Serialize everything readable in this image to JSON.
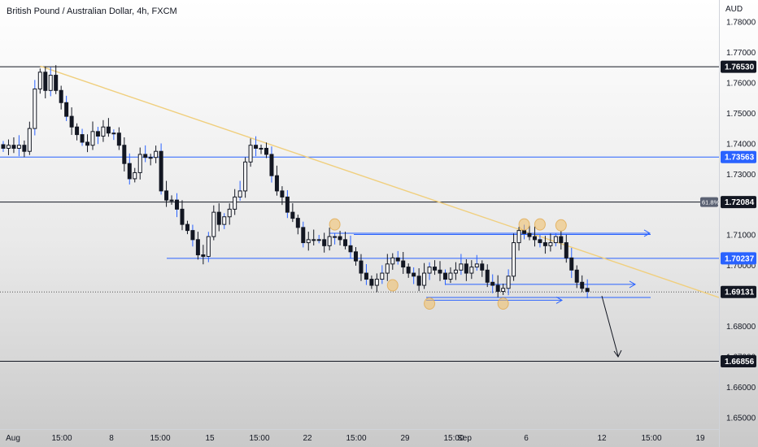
{
  "chart_data": {
    "type": "candlestick",
    "title": "British Pound / Australian Dollar, 4h, FXCM",
    "currency": "AUD",
    "ylim": [
      1.6468,
      1.7815
    ],
    "y_ticks": [
      "1.78000",
      "1.77000",
      "1.76000",
      "1.75000",
      "1.74000",
      "1.73000",
      "1.71000",
      "1.70000",
      "1.68000",
      "1.67000",
      "1.66000",
      "1.65000"
    ],
    "x_ticks": [
      "Aug",
      "15:00",
      "8",
      "15:00",
      "15",
      "15:00",
      "22",
      "15:00",
      "29",
      "15:00",
      "Sep",
      "6",
      "12",
      "15:00",
      "19"
    ],
    "price_labels": [
      {
        "value": 1.7653,
        "text": "1.76530",
        "style": "dark"
      },
      {
        "value": 1.73563,
        "text": "1.73563",
        "style": "blue"
      },
      {
        "value": 1.72084,
        "text": "1.72084",
        "style": "dark"
      },
      {
        "value": 1.70237,
        "text": "1.70237",
        "style": "blue"
      },
      {
        "value": 1.69131,
        "text": "1.69131",
        "style": "dark"
      },
      {
        "value": 1.66856,
        "text": "1.66856",
        "style": "dark"
      }
    ],
    "fib_label": "61.8%",
    "closes": [
      1.7385,
      1.7395,
      1.7385,
      1.7395,
      1.7375,
      1.745,
      1.758,
      1.7635,
      1.7575,
      1.7625,
      1.7575,
      1.7535,
      1.749,
      1.7455,
      1.743,
      1.7405,
      1.7395,
      1.744,
      1.7425,
      1.7455,
      1.7435,
      1.7435,
      1.7395,
      1.7335,
      1.7285,
      1.7305,
      1.7365,
      1.7355,
      1.7355,
      1.7375,
      1.7245,
      1.7215,
      1.7215,
      1.7185,
      1.7135,
      1.7115,
      1.7085,
      1.7035,
      1.703,
      1.7095,
      1.7175,
      1.7135,
      1.716,
      1.7185,
      1.7225,
      1.7245,
      1.734,
      1.7395,
      1.7385,
      1.7385,
      1.7365,
      1.7295,
      1.7245,
      1.7225,
      1.7175,
      1.7155,
      1.7125,
      1.7075,
      1.7085,
      1.7085,
      1.7085,
      1.7065,
      1.7095,
      1.7095,
      1.7085,
      1.7065,
      1.7045,
      1.7015,
      1.6975,
      1.6955,
      1.6935,
      1.6955,
      1.6975,
      1.7005,
      1.7025,
      1.7015,
      1.6995,
      1.6975,
      1.6965,
      1.6935,
      1.6975,
      1.6995,
      1.6985,
      1.6975,
      1.6955,
      1.6975,
      1.6985,
      1.7005,
      1.6975,
      1.6995,
      1.7005,
      1.6985,
      1.6945,
      1.6935,
      1.6915,
      1.6925,
      1.6965,
      1.7075,
      1.7115,
      1.7105,
      1.7095,
      1.7085,
      1.7075,
      1.7065,
      1.7075,
      1.7095,
      1.7075,
      1.7025,
      1.6985,
      1.6945,
      1.6925,
      1.6915
    ],
    "trendline": {
      "start": 1.7655,
      "end": 1.6895
    },
    "horizontal_levels": [
      1.7653,
      1.73563,
      1.72084,
      1.70237,
      1.69131,
      1.66856
    ]
  }
}
